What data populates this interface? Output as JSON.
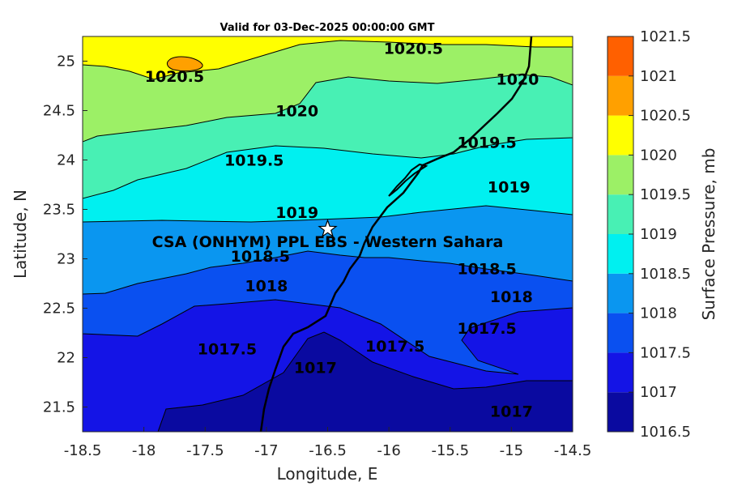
{
  "chart_data": {
    "type": "contour",
    "title": "Valid for 03-Dec-2025 00:00:00 GMT",
    "xlabel": "Longitude, E",
    "ylabel": "Latitude, N",
    "xlim": [
      -18.5,
      -14.5
    ],
    "ylim": [
      21.25,
      25.25
    ],
    "x_ticks": [
      "-18.5",
      "-18",
      "-17.5",
      "-17",
      "-16.5",
      "-16",
      "-15.5",
      "-15",
      "-14.5"
    ],
    "y_ticks": [
      "25",
      "24.5",
      "24",
      "23.5",
      "23",
      "22.5",
      "22",
      "21.5"
    ],
    "colorbar": {
      "label": "Surface Pressure, mb",
      "levels": [
        "1016.5",
        "1017",
        "1017.5",
        "1018",
        "1018.5",
        "1019",
        "1019.5",
        "1020",
        "1020.5",
        "1021",
        "1021.5"
      ],
      "colors": [
        "#0a0aa0",
        "#1414e6",
        "#0a50f0",
        "#0a96f0",
        "#00f0f0",
        "#48f0b4",
        "#9cf066",
        "#ffff00",
        "#ffa000",
        "#ff6000",
        "#ff0000"
      ]
    },
    "contour_levels": [
      "1017",
      "1017.5",
      "1018",
      "1018.5",
      "1019",
      "1019.5",
      "1020",
      "1020.5"
    ],
    "contour_labels": [
      {
        "text": "1020.5",
        "lon": -15.8,
        "lat": 25.13
      },
      {
        "text": "1020.5",
        "lon": -17.75,
        "lat": 24.85
      },
      {
        "text": "1020",
        "lon": -14.95,
        "lat": 24.82
      },
      {
        "text": "1020",
        "lon": -16.75,
        "lat": 24.5
      },
      {
        "text": "1019.5",
        "lon": -15.2,
        "lat": 24.18
      },
      {
        "text": "1019.5",
        "lon": -17.1,
        "lat": 24.0
      },
      {
        "text": "1019",
        "lon": -15.02,
        "lat": 23.73
      },
      {
        "text": "1019",
        "lon": -16.75,
        "lat": 23.47
      },
      {
        "text": "1018.5",
        "lon": -17.05,
        "lat": 23.03
      },
      {
        "text": "1018.5",
        "lon": -15.2,
        "lat": 22.9
      },
      {
        "text": "1018",
        "lon": -17.0,
        "lat": 22.73
      },
      {
        "text": "1018",
        "lon": -15.0,
        "lat": 22.62
      },
      {
        "text": "1017.5",
        "lon": -17.32,
        "lat": 22.09
      },
      {
        "text": "1017.5",
        "lon": -15.95,
        "lat": 22.12
      },
      {
        "text": "1017.5",
        "lon": -15.2,
        "lat": 22.3
      },
      {
        "text": "1017",
        "lon": -16.6,
        "lat": 21.9
      },
      {
        "text": "1017",
        "lon": -15.0,
        "lat": 21.46
      }
    ],
    "station": {
      "label": "CSA (ONHYM) PPL EBS  - Western Sahara",
      "lon": -16.5,
      "lat": 23.3
    }
  }
}
